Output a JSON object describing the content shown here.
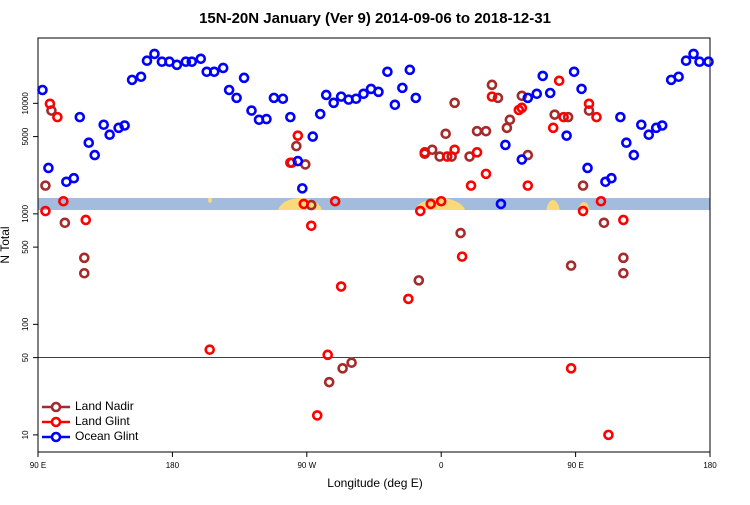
{
  "chart_data": {
    "type": "scatter",
    "title": "15N-20N January (Ver 9)   2014-09-06 to 2018-12-31",
    "xlabel": "Longitude (deg E)",
    "ylabel": "N Total",
    "xlim": [
      90,
      540
    ],
    "ylim": [
      7,
      39000
    ],
    "ylog": true,
    "xticks": [
      {
        "value": 90,
        "label": "90 E"
      },
      180,
      {
        "value": 270,
        "label": "90 W"
      },
      {
        "value": 360,
        "label": "0"
      },
      {
        "value": 450,
        "label": "90 E"
      },
      {
        "value": 540,
        "label": "180"
      }
    ],
    "yticks": [
      10,
      50,
      100,
      500,
      1000,
      5000,
      10000
    ],
    "hline": 50,
    "legend": "lower left",
    "series": [
      {
        "name": "Land Nadir",
        "color": "#a52a2a",
        "x": [
          95,
          99,
          108,
          121,
          121,
          260,
          263,
          269,
          273,
          285,
          294,
          300,
          345,
          349,
          354,
          359,
          363,
          367,
          369,
          373,
          379,
          384,
          390,
          394,
          398,
          404,
          406,
          414,
          418,
          436,
          445,
          447,
          455,
          459,
          469,
          482,
          482
        ],
        "values": [
          1800,
          8600,
          830,
          400,
          290,
          2900,
          4100,
          2800,
          1200,
          30,
          40,
          45,
          250,
          3500,
          3800,
          3300,
          5300,
          3300,
          10100,
          670,
          3300,
          5600,
          5600,
          14700,
          11200,
          6000,
          7100,
          11700,
          3400,
          7900,
          7500,
          340,
          1800,
          8600,
          830,
          400,
          290
        ]
      },
      {
        "name": "Land Glint",
        "color": "#ff0000",
        "x": [
          95,
          98,
          103,
          107,
          122,
          205,
          259,
          264,
          268,
          273,
          277,
          284,
          289,
          293,
          338,
          346,
          349,
          353,
          360,
          364,
          369,
          374,
          380,
          384,
          390,
          394,
          412,
          414,
          418,
          435,
          439,
          442,
          447,
          455,
          459,
          464,
          467,
          472,
          482
        ],
        "values": [
          1060,
          9900,
          7500,
          1300,
          880,
          59,
          2900,
          5100,
          1230,
          780,
          15,
          53,
          1300,
          220,
          170,
          1060,
          3600,
          1230,
          1300,
          3300,
          3800,
          410,
          1800,
          3600,
          2300,
          11500,
          8700,
          9100,
          1800,
          6000,
          16000,
          7500,
          40,
          1060,
          9900,
          7500,
          1300,
          10,
          880
        ]
      },
      {
        "name": "Ocean Glint",
        "color": "#0000ff",
        "x": [
          93,
          97,
          109,
          114,
          118,
          124,
          128,
          134,
          138,
          144,
          148,
          153,
          159,
          163,
          168,
          173,
          178,
          183,
          189,
          193,
          199,
          203,
          208,
          214,
          218,
          223,
          228,
          233,
          238,
          243,
          248,
          254,
          259,
          264,
          267,
          274,
          279,
          283,
          288,
          293,
          298,
          303,
          308,
          313,
          318,
          324,
          329,
          334,
          339,
          343,
          400,
          403,
          414,
          418,
          424,
          428,
          433,
          444,
          449,
          454,
          458,
          470,
          474,
          480,
          484,
          489,
          494,
          499,
          504,
          508,
          514,
          519,
          524,
          529,
          533,
          539
        ],
        "values": [
          13200,
          2600,
          1950,
          2100,
          7500,
          4400,
          3400,
          6400,
          5200,
          6000,
          6300,
          16300,
          17400,
          24300,
          28000,
          23800,
          23800,
          22300,
          23800,
          23800,
          25300,
          19300,
          19300,
          20900,
          13200,
          11200,
          17000,
          8600,
          7100,
          7200,
          11200,
          11000,
          7500,
          3000,
          1700,
          5000,
          8000,
          11900,
          10100,
          11500,
          10800,
          11000,
          12200,
          13500,
          12700,
          19300,
          9700,
          13800,
          20100,
          11200,
          1230,
          4200,
          3100,
          11200,
          12200,
          17700,
          12400,
          5100,
          19300,
          13500,
          2600,
          1950,
          2100,
          7500,
          4400,
          3400,
          6400,
          5200,
          6000,
          6300,
          16300,
          17400,
          24300,
          28000,
          23800,
          23800
        ]
      }
    ]
  }
}
